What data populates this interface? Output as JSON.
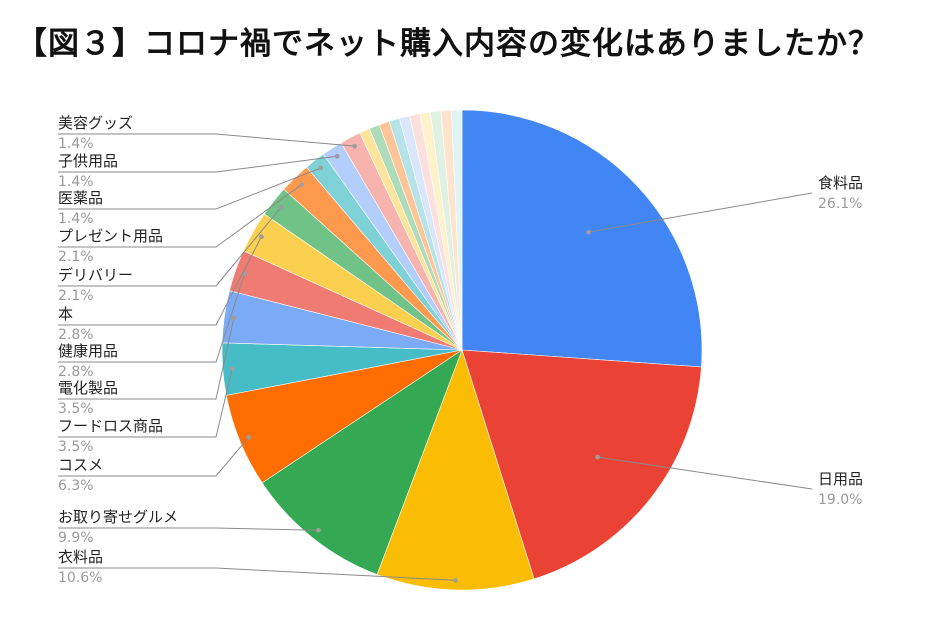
{
  "chart_data": {
    "type": "pie",
    "title": "【図３】コロナ禍でネット購入内容の変化はありましたか？",
    "slices": [
      {
        "label": "食料品",
        "pct_label": "26.1%",
        "value": 26.1,
        "color": "#4285f4"
      },
      {
        "label": "日用品",
        "pct_label": "19.0%",
        "value": 19.0,
        "color": "#ea4335"
      },
      {
        "label": "衣料品",
        "pct_label": "10.6%",
        "value": 10.6,
        "color": "#fbbc04"
      },
      {
        "label": "お取り寄せグルメ",
        "pct_label": "9.9%",
        "value": 9.9,
        "color": "#34a853"
      },
      {
        "label": "コスメ",
        "pct_label": "6.3%",
        "value": 6.3,
        "color": "#ff6d01"
      },
      {
        "label": "フードロス商品",
        "pct_label": "3.5%",
        "value": 3.5,
        "color": "#46bdc6"
      },
      {
        "label": "電化製品",
        "pct_label": "3.5%",
        "value": 3.5,
        "color": "#7baaf7"
      },
      {
        "label": "健康用品",
        "pct_label": "2.8%",
        "value": 2.8,
        "color": "#f07b72"
      },
      {
        "label": "本",
        "pct_label": "2.8%",
        "value": 2.8,
        "color": "#fcd04f"
      },
      {
        "label": "デリバリー",
        "pct_label": "2.1%",
        "value": 2.1,
        "color": "#71c287"
      },
      {
        "label": "プレゼント用品",
        "pct_label": "2.1%",
        "value": 2.1,
        "color": "#ff994d"
      },
      {
        "label": "医薬品",
        "pct_label": "1.4%",
        "value": 1.4,
        "color": "#7ed1d7"
      },
      {
        "label": "子供用品",
        "pct_label": "1.4%",
        "value": 1.4,
        "color": "#b3cefb"
      },
      {
        "label": "美容グッズ",
        "pct_label": "1.4%",
        "value": 1.4,
        "color": "#f7b4ae"
      },
      {
        "label": "",
        "pct_label": "",
        "value": 0.7,
        "color": "#fde49b"
      },
      {
        "label": "",
        "pct_label": "",
        "value": 0.7,
        "color": "#aedcba"
      },
      {
        "label": "",
        "pct_label": "",
        "value": 0.7,
        "color": "#ffc599"
      },
      {
        "label": "",
        "pct_label": "",
        "value": 0.7,
        "color": "#b5e3e7"
      },
      {
        "label": "",
        "pct_label": "",
        "value": 0.7,
        "color": "#d9e6fc"
      },
      {
        "label": "",
        "pct_label": "",
        "value": 0.7,
        "color": "#fbe0de"
      },
      {
        "label": "",
        "pct_label": "",
        "value": 0.7,
        "color": "#fef1cb"
      },
      {
        "label": "",
        "pct_label": "",
        "value": 0.7,
        "color": "#def1e3"
      },
      {
        "label": "",
        "pct_label": "",
        "value": 0.7,
        "color": "#ffe3cc"
      },
      {
        "label": "",
        "pct_label": "",
        "value": 0.7,
        "color": "#e0f4f5"
      }
    ],
    "legend": "none",
    "label_placement": "outside-with-leader-lines"
  }
}
